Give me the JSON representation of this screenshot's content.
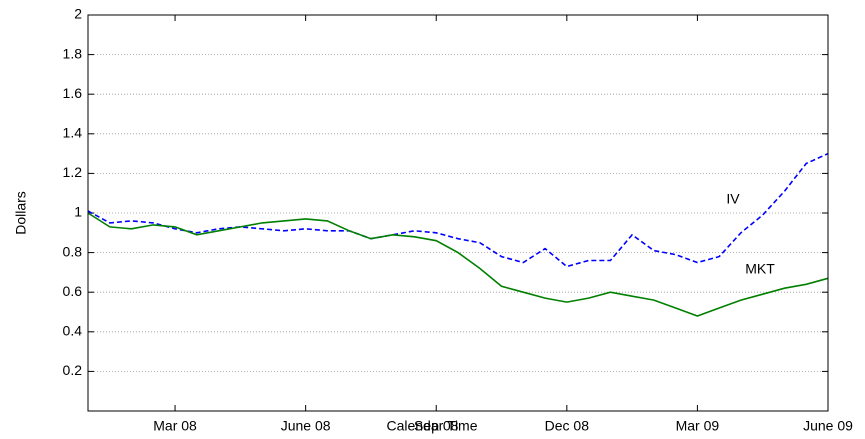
{
  "chart_data": {
    "type": "line",
    "x_label": "Calendar Time",
    "y_label": "Dollars",
    "categories": [
      null,
      null,
      null,
      null,
      "Mar 08",
      null,
      null,
      null,
      null,
      null,
      "June 08",
      null,
      null,
      null,
      null,
      null,
      "Sep 08",
      null,
      null,
      null,
      null,
      null,
      "Dec 08",
      null,
      null,
      null,
      null,
      null,
      "Mar 09",
      null,
      null,
      null,
      null,
      null,
      "June 09"
    ],
    "series": [
      {
        "name": "IV",
        "color": "#0000ff",
        "dashed": true,
        "values": [
          1.01,
          0.95,
          0.96,
          0.95,
          0.92,
          0.9,
          0.92,
          0.93,
          0.92,
          0.91,
          0.92,
          0.91,
          0.91,
          0.87,
          0.89,
          0.91,
          0.9,
          0.87,
          0.85,
          0.78,
          0.75,
          0.82,
          0.73,
          0.76,
          0.76,
          0.89,
          0.81,
          0.79,
          0.75,
          0.78,
          0.9,
          0.99,
          1.11,
          1.25,
          1.3
        ]
      },
      {
        "name": "MKT",
        "color": "#008000",
        "dashed": false,
        "values": [
          1.0,
          0.93,
          0.92,
          0.94,
          0.93,
          0.89,
          0.91,
          0.93,
          0.95,
          0.96,
          0.97,
          0.96,
          0.91,
          0.87,
          0.89,
          0.88,
          0.86,
          0.8,
          0.72,
          0.63,
          0.6,
          0.57,
          0.55,
          0.57,
          0.6,
          0.58,
          0.56,
          0.52,
          0.48,
          0.52,
          0.56,
          0.59,
          0.62,
          0.64,
          0.67
        ]
      }
    ],
    "ylim": [
      0,
      2
    ],
    "yticks": [
      0.2,
      0.4,
      0.6,
      0.8,
      1,
      1.2,
      1.4,
      1.6,
      1.8,
      2
    ],
    "grid": true
  }
}
